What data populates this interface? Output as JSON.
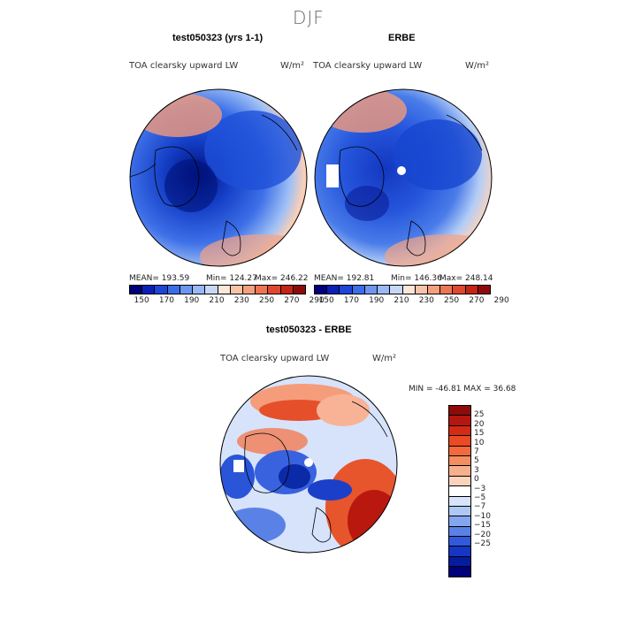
{
  "page": {
    "title": "DJF"
  },
  "panels": {
    "model": {
      "title": "test050323 (yrs 1-1)",
      "variable": "TOA clearsky upward LW",
      "units": "W/m²",
      "stats": {
        "mean": "MEAN= 193.59",
        "min": "Min= 124.27",
        "max": "Max= 246.22"
      }
    },
    "obs": {
      "title": "ERBE",
      "variable": "TOA clearsky upward LW",
      "units": "W/m²",
      "stats": {
        "mean": "MEAN= 192.81",
        "min": "Min= 146.36",
        "max": "Max= 248.14"
      }
    },
    "diff": {
      "title": "test050323 - ERBE",
      "variable": "TOA clearsky upward LW",
      "units": "W/m²",
      "stats": "MIN = -46.81 MAX =  36.68"
    }
  },
  "colorbar_top": {
    "labels": [
      "150",
      "170",
      "190",
      "210",
      "230",
      "250",
      "270",
      "290"
    ],
    "colors": [
      "#00007a",
      "#0a1fb8",
      "#1f45d6",
      "#3a6ee8",
      "#6f96ef",
      "#9ab8f5",
      "#c6d8fa",
      "#fbe6d8",
      "#f8c4a8",
      "#f4a07f",
      "#ee7554",
      "#e0472e",
      "#c42515",
      "#8e0b0b"
    ]
  },
  "colorbar_diff": {
    "labels": [
      "25",
      "20",
      "15",
      "10",
      "7",
      "5",
      "3",
      "0",
      "−3",
      "−5",
      "−7",
      "−10",
      "−15",
      "−20",
      "−25"
    ],
    "colors": [
      "#8e0b0b",
      "#b5160f",
      "#d62a15",
      "#ea4a24",
      "#f26a3c",
      "#f48d60",
      "#f7b08c",
      "#fbd3bd",
      "#ffffff",
      "#d7e4fb",
      "#aec8f6",
      "#84a6ef",
      "#5a82e6",
      "#3259db",
      "#1537c4",
      "#061c9e",
      "#00007a"
    ]
  }
}
